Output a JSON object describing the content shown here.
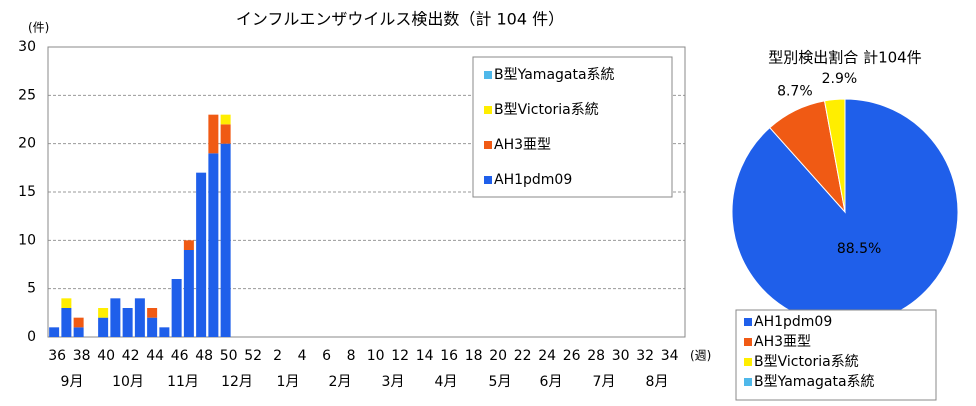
{
  "chart_data": [
    {
      "type": "bar",
      "stacked": true,
      "title": "インフルエンザウイルス検出数（計 104 件）",
      "y_label": "(件)",
      "x_label": "(週)",
      "grid": true,
      "categories": [
        "36",
        null,
        "38",
        null,
        "40",
        null,
        "42",
        null,
        "44",
        null,
        "46",
        null,
        "48",
        null,
        "50",
        null,
        "52",
        null,
        "2",
        null,
        "4",
        null,
        "6",
        null,
        "8",
        null,
        "10",
        null,
        "12",
        null,
        "14",
        null,
        "16",
        null,
        "18",
        null,
        "20",
        null,
        "22",
        null,
        "24",
        null,
        "26",
        null,
        "28",
        null,
        "30",
        null,
        "32",
        null,
        "34",
        null
      ],
      "months": [
        "9月",
        "10月",
        "11月",
        "12月",
        "1月",
        "2月",
        "3月",
        "4月",
        "5月",
        "6月",
        "7月",
        "8月"
      ],
      "ylim": [
        0,
        30
      ],
      "yticks": [
        0,
        5,
        10,
        15,
        20,
        25,
        30
      ],
      "series": [
        {
          "name": "AH1pdm09",
          "color": "#1f5fea",
          "values": [
            1,
            3,
            1,
            0,
            2,
            4,
            3,
            4,
            2,
            1,
            6,
            9,
            17,
            19,
            20,
            null,
            null,
            null,
            null,
            null,
            null,
            null,
            null,
            null,
            null,
            null,
            null,
            null,
            null,
            null,
            null,
            null,
            null,
            null,
            null,
            null,
            null,
            null,
            null,
            null,
            null,
            null,
            null,
            null,
            null,
            null,
            null,
            null,
            null,
            null,
            null,
            null
          ]
        },
        {
          "name": "AH3亜型",
          "color": "#f05a14",
          "values": [
            0,
            0,
            1,
            0,
            0,
            0,
            0,
            0,
            1,
            0,
            0,
            1,
            0,
            4,
            2,
            null,
            null,
            null,
            null,
            null,
            null,
            null,
            null,
            null,
            null,
            null,
            null,
            null,
            null,
            null,
            null,
            null,
            null,
            null,
            null,
            null,
            null,
            null,
            null,
            null,
            null,
            null,
            null,
            null,
            null,
            null,
            null,
            null,
            null,
            null,
            null,
            null
          ]
        },
        {
          "name": "B型Victoria系統",
          "color": "#ffee00",
          "values": [
            0,
            1,
            0,
            0,
            1,
            0,
            0,
            0,
            0,
            0,
            0,
            0,
            0,
            0,
            1,
            null,
            null,
            null,
            null,
            null,
            null,
            null,
            null,
            null,
            null,
            null,
            null,
            null,
            null,
            null,
            null,
            null,
            null,
            null,
            null,
            null,
            null,
            null,
            null,
            null,
            null,
            null,
            null,
            null,
            null,
            null,
            null,
            null,
            null,
            null,
            null,
            null
          ]
        },
        {
          "name": "B型Yamagata系統",
          "color": "#4fb8ea",
          "values": [
            0,
            0,
            0,
            0,
            0,
            0,
            0,
            0,
            0,
            0,
            0,
            0,
            0,
            0,
            0,
            null,
            null,
            null,
            null,
            null,
            null,
            null,
            null,
            null,
            null,
            null,
            null,
            null,
            null,
            null,
            null,
            null,
            null,
            null,
            null,
            null,
            null,
            null,
            null,
            null,
            null,
            null,
            null,
            null,
            null,
            null,
            null,
            null,
            null,
            null,
            null,
            null
          ]
        }
      ]
    },
    {
      "type": "pie",
      "title": "型別検出割合 計104件",
      "categories": [
        "AH1pdm09",
        "AH3亜型",
        "B型Victoria系統",
        "B型Yamagata系統"
      ],
      "colors": [
        "#1f5fea",
        "#f05a14",
        "#ffee00",
        "#4fb8ea"
      ],
      "values": [
        88.5,
        8.7,
        2.9,
        0
      ],
      "value_labels": [
        "88.5%",
        "8.7%",
        "2.9%",
        null
      ]
    }
  ]
}
